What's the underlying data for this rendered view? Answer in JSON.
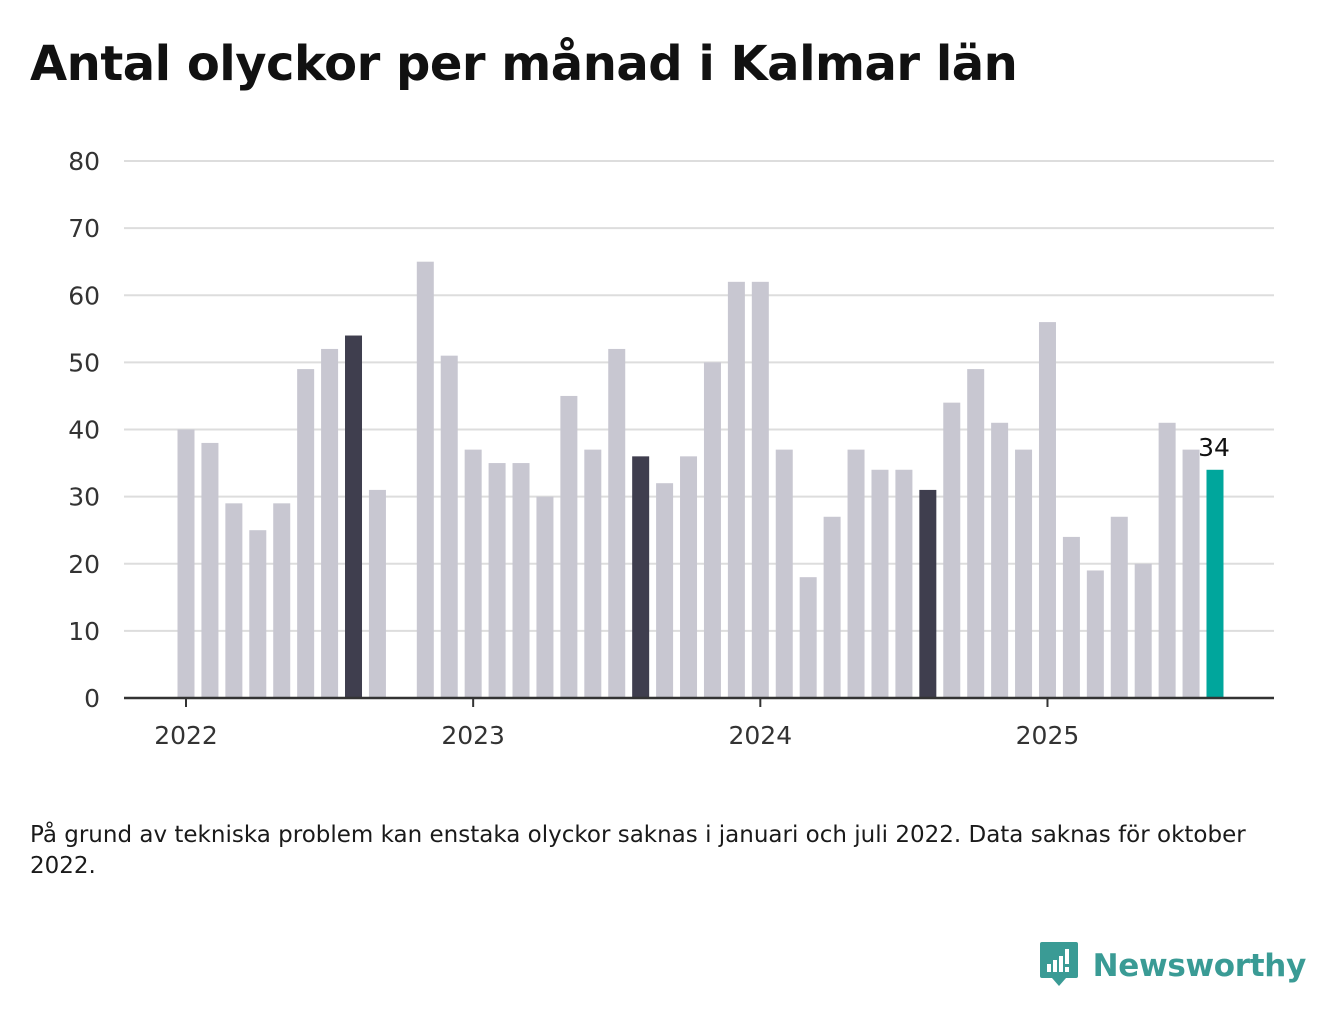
{
  "title": "Antal olyckor per månad i Kalmar län",
  "footnote": "På grund av tekniska problem kan enstaka olyckor saknas i januari och juli 2022. Data saknas för oktober 2022.",
  "brand": {
    "name": "Newsworthy",
    "icon": "bar-chart-speech-bubble-icon",
    "color": "#3a9b95"
  },
  "colors": {
    "bar": "#c8c7d1",
    "highlight": "#3f3e4e",
    "latest": "#00a69c",
    "grid": "#dddddd",
    "axis": "#333333"
  },
  "chart_data": {
    "type": "bar",
    "title": "Antal olyckor per månad i Kalmar län",
    "xlabel": "",
    "ylabel": "",
    "ylim": [
      0,
      80
    ],
    "y_ticks": [
      "0",
      "10",
      "20",
      "30",
      "40",
      "50",
      "60",
      "70",
      "80"
    ],
    "x_tick_labels": [
      "2022",
      "2023",
      "2024",
      "2025"
    ],
    "grid": true,
    "categories": [
      "2022-01",
      "2022-02",
      "2022-03",
      "2022-04",
      "2022-05",
      "2022-06",
      "2022-07",
      "2022-08",
      "2022-09",
      "2022-10",
      "2022-11",
      "2022-12",
      "2023-01",
      "2023-02",
      "2023-03",
      "2023-04",
      "2023-05",
      "2023-06",
      "2023-07",
      "2023-08",
      "2023-09",
      "2023-10",
      "2023-11",
      "2023-12",
      "2024-01",
      "2024-02",
      "2024-03",
      "2024-04",
      "2024-05",
      "2024-06",
      "2024-07",
      "2024-08",
      "2024-09",
      "2024-10",
      "2024-11",
      "2024-12",
      "2025-01",
      "2025-02",
      "2025-03",
      "2025-04",
      "2025-05",
      "2025-06",
      "2025-07",
      "2025-08"
    ],
    "values": [
      40,
      38,
      29,
      25,
      29,
      49,
      52,
      54,
      31,
      null,
      65,
      51,
      37,
      35,
      35,
      30,
      45,
      37,
      52,
      36,
      32,
      36,
      50,
      62,
      62,
      37,
      18,
      27,
      37,
      34,
      34,
      31,
      44,
      49,
      41,
      37,
      56,
      24,
      19,
      27,
      20,
      41,
      37,
      34
    ],
    "highlighted": [
      "2022-08",
      "2023-08",
      "2024-08"
    ],
    "latest": "2025-08",
    "value_labels": [
      {
        "category": "2025-08",
        "text": "34"
      }
    ]
  }
}
